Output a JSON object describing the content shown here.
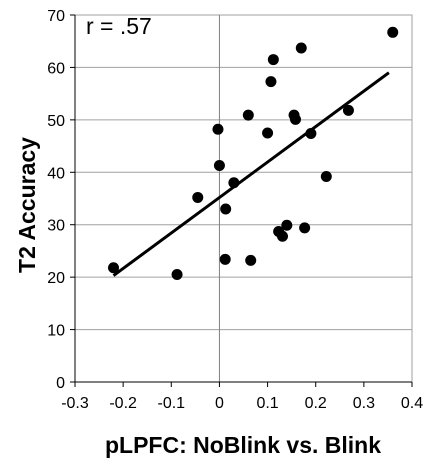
{
  "chart_data": {
    "type": "scatter",
    "xlabel": "pLPFC: NoBlink vs. Blink",
    "ylabel": "T2 Accuracy",
    "annotation": "r = .57",
    "xlim": [
      -0.3,
      0.4
    ],
    "ylim": [
      0,
      70
    ],
    "x_ticks": [
      -0.3,
      -0.2,
      -0.1,
      0,
      0.1,
      0.2,
      0.3,
      0.4
    ],
    "x_tick_labels": [
      "-0.3",
      "-0.2",
      "-0.1",
      "0",
      "0.1",
      "0.2",
      "0.3",
      "0.4"
    ],
    "y_ticks": [
      0,
      10,
      20,
      30,
      40,
      50,
      60,
      70
    ],
    "y_tick_labels": [
      "0",
      "10",
      "20",
      "30",
      "40",
      "50",
      "60",
      "70"
    ],
    "grid": "horizontal",
    "zero_line_x": 0,
    "points": [
      {
        "x": -0.22,
        "y": 21.8
      },
      {
        "x": -0.088,
        "y": 20.5
      },
      {
        "x": -0.045,
        "y": 35.2
      },
      {
        "x": -0.003,
        "y": 48.2
      },
      {
        "x": 0.0,
        "y": 41.3
      },
      {
        "x": 0.013,
        "y": 33.0
      },
      {
        "x": 0.012,
        "y": 23.4
      },
      {
        "x": 0.03,
        "y": 38.0
      },
      {
        "x": 0.06,
        "y": 50.9
      },
      {
        "x": 0.065,
        "y": 23.2
      },
      {
        "x": 0.1,
        "y": 47.5
      },
      {
        "x": 0.107,
        "y": 57.3
      },
      {
        "x": 0.112,
        "y": 61.5
      },
      {
        "x": 0.123,
        "y": 28.7
      },
      {
        "x": 0.131,
        "y": 27.8
      },
      {
        "x": 0.14,
        "y": 29.9
      },
      {
        "x": 0.155,
        "y": 50.9
      },
      {
        "x": 0.158,
        "y": 50.1
      },
      {
        "x": 0.17,
        "y": 63.7
      },
      {
        "x": 0.177,
        "y": 29.4
      },
      {
        "x": 0.19,
        "y": 47.4
      },
      {
        "x": 0.222,
        "y": 39.2
      },
      {
        "x": 0.268,
        "y": 51.8
      },
      {
        "x": 0.36,
        "y": 66.7
      }
    ],
    "trendline": {
      "x": [
        -0.22,
        0.352
      ],
      "y": [
        20.3,
        59.0
      ]
    }
  }
}
